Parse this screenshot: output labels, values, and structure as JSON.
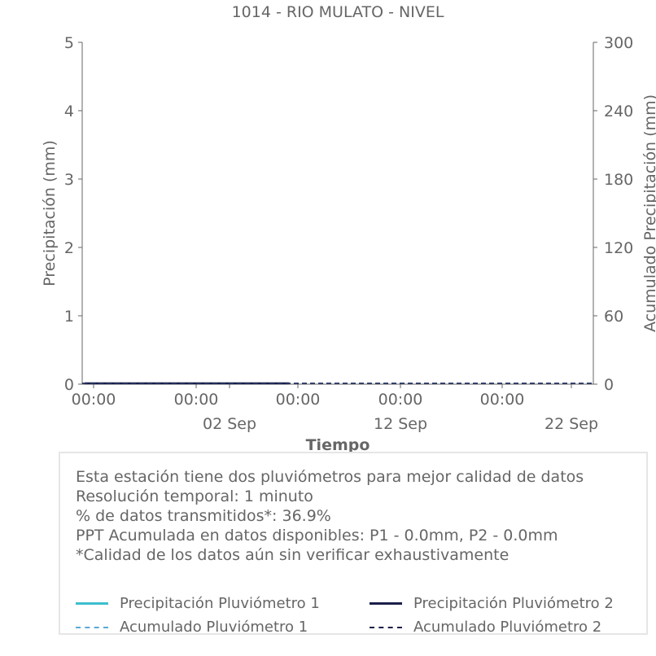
{
  "chart_data": {
    "type": "line",
    "title": "1014 - RIO MULATO - NIVEL",
    "xlabel": "Tiempo",
    "ylabel": "Precipitación (mm)",
    "y2label": "Acumulado Precipitación (mm)",
    "ylim": [
      0,
      5
    ],
    "y2lim": [
      0,
      300
    ],
    "yticks": [
      "0",
      "1",
      "2",
      "3",
      "4",
      "5"
    ],
    "y2ticks": [
      "0",
      "60",
      "120",
      "180",
      "240",
      "300"
    ],
    "xticks_time": [
      "00:00",
      "00:00",
      "00:00",
      "00:00",
      "00:00"
    ],
    "xticks_date": [
      "02 Sep",
      "12 Sep",
      "22 Sep"
    ],
    "series": [
      {
        "name": "Precipitación Pluviómetro 1",
        "color": "#3dbfce",
        "style": "solid",
        "values": [
          0,
          0
        ]
      },
      {
        "name": "Precipitación Pluviómetro 2",
        "color": "#1b1f4a",
        "style": "solid",
        "values": [
          0,
          0
        ]
      },
      {
        "name": "Acumulado Pluviómetro 1",
        "color": "#5aa9d6",
        "style": "dashed",
        "values": [
          0,
          0
        ]
      },
      {
        "name": "Acumulado Pluviómetro 2",
        "color": "#1b1f4a",
        "style": "dashed",
        "values": [
          0,
          0
        ]
      }
    ]
  },
  "info": {
    "lines": [
      "Esta estación tiene dos pluviómetros para mejor calidad de datos",
      "Resolución temporal: 1 minuto",
      "% de datos transmitidos*: 36.9%",
      "PPT Acumulada en datos disponibles: P1 - 0.0mm, P2 - 0.0mm",
      "*Calidad de los datos aún sin verificar exhaustivamente"
    ]
  }
}
